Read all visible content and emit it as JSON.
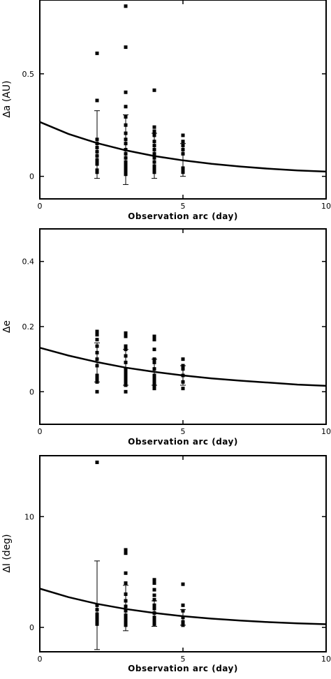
{
  "chart_data": [
    {
      "type": "scatter",
      "xlabel": "Observation arc (day)",
      "ylabel": "∆a (AU)",
      "xlim": [
        0,
        10
      ],
      "ylim": [
        -0.11,
        0.86
      ],
      "xticks": [
        0,
        5,
        10
      ],
      "yticks": [
        0,
        0.5
      ],
      "xtick_labels": [
        "0",
        "5",
        "10"
      ],
      "ytick_labels": [
        "0",
        "0.5"
      ],
      "grid": false,
      "series": [
        {
          "kind": "points",
          "x": [
            2,
            2,
            2,
            2,
            2,
            2,
            2,
            2,
            2,
            2,
            2,
            2,
            3,
            3,
            3,
            3,
            3,
            3,
            3,
            3,
            3,
            3,
            3,
            3,
            3,
            3,
            3,
            3,
            3,
            3,
            3,
            4,
            4,
            4,
            4,
            4,
            4,
            4,
            4,
            4,
            4,
            4,
            4,
            4,
            4,
            5,
            5,
            5,
            5,
            5,
            5,
            5,
            5
          ],
          "y": [
            0.6,
            0.37,
            0.18,
            0.16,
            0.14,
            0.12,
            0.1,
            0.08,
            0.07,
            0.06,
            0.03,
            0.02,
            0.83,
            0.63,
            0.41,
            0.34,
            0.29,
            0.25,
            0.21,
            0.18,
            0.16,
            0.13,
            0.11,
            0.09,
            0.07,
            0.06,
            0.05,
            0.04,
            0.03,
            0.02,
            0.01,
            0.42,
            0.24,
            0.22,
            0.2,
            0.17,
            0.15,
            0.13,
            0.11,
            0.09,
            0.07,
            0.05,
            0.04,
            0.03,
            0.02,
            0.2,
            0.17,
            0.15,
            0.13,
            0.11,
            0.04,
            0.03,
            0.02
          ]
        },
        {
          "kind": "curve",
          "x": [
            0,
            1,
            2,
            3,
            4,
            5,
            6,
            7,
            8,
            9,
            10
          ],
          "y": [
            0.265,
            0.207,
            0.162,
            0.127,
            0.099,
            0.078,
            0.061,
            0.048,
            0.037,
            0.029,
            0.023
          ]
        },
        {
          "kind": "errorbars",
          "x": [
            2,
            3,
            4,
            5
          ],
          "y": [
            0.16,
            0.13,
            0.1,
            0.08
          ],
          "low": [
            -0.01,
            -0.04,
            -0.01,
            0.0
          ],
          "high": [
            0.32,
            0.3,
            0.21,
            0.16
          ]
        }
      ]
    },
    {
      "type": "scatter",
      "xlabel": "Observation arc (day)",
      "ylabel": "∆e",
      "xlim": [
        0,
        10
      ],
      "ylim": [
        -0.1,
        0.5
      ],
      "xticks": [
        0,
        5,
        10
      ],
      "yticks": [
        0,
        0.2,
        0.4
      ],
      "xtick_labels": [
        "0",
        "5",
        "10"
      ],
      "ytick_labels": [
        "0",
        "0.2",
        "0.4"
      ],
      "grid": false,
      "series": [
        {
          "kind": "points",
          "x": [
            2,
            2,
            2,
            2,
            2,
            2,
            2,
            2,
            2,
            2,
            2,
            3,
            3,
            3,
            3,
            3,
            3,
            3,
            3,
            3,
            3,
            3,
            3,
            3,
            4,
            4,
            4,
            4,
            4,
            4,
            4,
            4,
            4,
            4,
            4,
            5,
            5,
            5,
            5,
            5,
            5
          ],
          "y": [
            0.185,
            0.175,
            0.16,
            0.14,
            0.12,
            0.1,
            0.08,
            0.05,
            0.04,
            0.03,
            0.0,
            0.18,
            0.17,
            0.14,
            0.13,
            0.11,
            0.09,
            0.07,
            0.06,
            0.05,
            0.04,
            0.03,
            0.02,
            0.0,
            0.17,
            0.16,
            0.13,
            0.1,
            0.09,
            0.07,
            0.05,
            0.04,
            0.03,
            0.02,
            0.01,
            0.1,
            0.08,
            0.07,
            0.05,
            0.03,
            0.01
          ]
        },
        {
          "kind": "curve",
          "x": [
            0,
            1,
            2,
            3,
            4,
            5,
            6,
            7,
            8,
            9,
            10
          ],
          "y": [
            0.135,
            0.111,
            0.091,
            0.074,
            0.061,
            0.05,
            0.041,
            0.034,
            0.028,
            0.022,
            0.018
          ]
        },
        {
          "kind": "errorbars",
          "x": [
            2,
            3,
            4,
            5
          ],
          "y": [
            0.09,
            0.075,
            0.06,
            0.05
          ],
          "low": [
            0.03,
            0.02,
            0.02,
            0.02
          ],
          "high": [
            0.15,
            0.13,
            0.1,
            0.08
          ]
        }
      ]
    },
    {
      "type": "scatter",
      "xlabel": "Observation arc (day)",
      "ylabel": "∆I (deg)",
      "xlim": [
        0,
        10
      ],
      "ylim": [
        -2.2,
        15.5
      ],
      "xticks": [
        0,
        5,
        10
      ],
      "yticks": [
        0,
        10
      ],
      "xtick_labels": [
        "0",
        "5",
        "10"
      ],
      "ytick_labels": [
        "0",
        "10"
      ],
      "grid": false,
      "series": [
        {
          "kind": "points",
          "x": [
            2,
            2,
            2,
            2,
            2,
            2,
            2,
            3,
            3,
            3,
            3,
            3,
            3,
            3,
            3,
            3,
            3,
            3,
            3,
            4,
            4,
            4,
            4,
            4,
            4,
            4,
            4,
            4,
            4,
            4,
            5,
            5,
            5,
            5,
            5,
            5
          ],
          "y": [
            14.9,
            2.0,
            1.6,
            1.2,
            0.9,
            0.6,
            0.3,
            7.0,
            6.7,
            4.9,
            4.0,
            3.0,
            2.4,
            1.9,
            1.5,
            1.1,
            0.8,
            0.5,
            0.2,
            4.3,
            4.0,
            3.4,
            2.9,
            2.5,
            2.0,
            1.7,
            1.3,
            0.9,
            0.6,
            0.3,
            3.9,
            2.0,
            1.5,
            0.9,
            0.5,
            0.2
          ]
        },
        {
          "kind": "curve",
          "x": [
            0,
            1,
            2,
            3,
            4,
            5,
            6,
            7,
            8,
            9,
            10
          ],
          "y": [
            3.5,
            2.73,
            2.13,
            1.66,
            1.3,
            1.01,
            0.79,
            0.62,
            0.48,
            0.37,
            0.29
          ]
        },
        {
          "kind": "errorbars",
          "x": [
            2,
            3,
            4,
            5
          ],
          "y": [
            2.0,
            1.7,
            1.2,
            0.9
          ],
          "low": [
            -2.0,
            -0.3,
            0.1,
            0.2
          ],
          "high": [
            6.0,
            3.8,
            2.4,
            1.6
          ]
        }
      ]
    }
  ]
}
